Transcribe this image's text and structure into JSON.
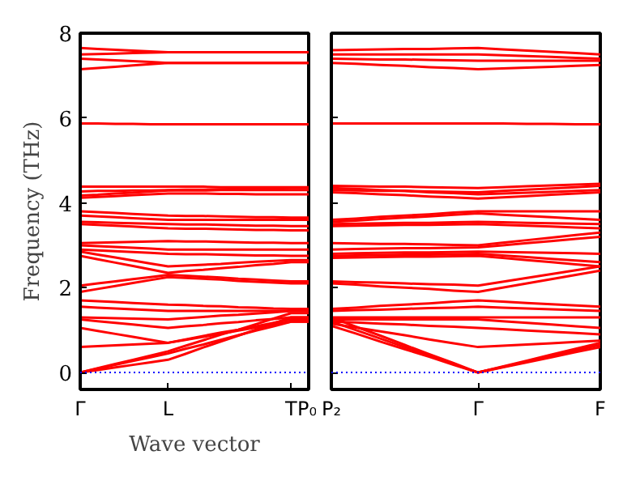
{
  "chart_data": [
    {
      "type": "line",
      "ylabel": "Frequency (THz)",
      "xlabel": "Wave vector",
      "ylim": [
        -0.4,
        8
      ],
      "categories": [
        "Γ",
        null,
        null,
        null,
        null,
        "L",
        null,
        null,
        null,
        null,
        null,
        null,
        "T",
        "P₀"
      ],
      "yticks": [
        0,
        2,
        4,
        6,
        8
      ],
      "ref_lines": [
        {
          "axis": "y",
          "value": 0,
          "label": null,
          "color": "#0000ff",
          "line_style": "dotted"
        }
      ],
      "series": [
        {
          "color": "#ff0000",
          "values": [
            7.65,
            7.63,
            7.61,
            7.59,
            7.57,
            7.55,
            7.55,
            7.55,
            7.55,
            7.55,
            7.55,
            7.55,
            7.55,
            7.55
          ]
        },
        {
          "color": "#ff0000",
          "values": [
            7.5,
            7.51,
            7.52,
            7.53,
            7.54,
            7.55,
            7.55,
            7.55,
            7.55,
            7.55,
            7.55,
            7.55,
            7.55,
            7.55
          ]
        },
        {
          "color": "#ff0000",
          "values": [
            7.4,
            7.38,
            7.36,
            7.34,
            7.32,
            7.3,
            7.3,
            7.3,
            7.3,
            7.3,
            7.3,
            7.3,
            7.3,
            7.3
          ]
        },
        {
          "color": "#ff0000",
          "values": [
            7.15,
            7.18,
            7.21,
            7.24,
            7.27,
            7.3,
            7.3,
            7.3,
            7.3,
            7.3,
            7.3,
            7.3,
            7.3,
            7.3
          ]
        },
        {
          "color": "#ff0000",
          "values": [
            5.87,
            5.87,
            5.86,
            5.86,
            5.85,
            5.85,
            5.85,
            5.85,
            5.85,
            5.85,
            5.85,
            5.85,
            5.85,
            5.85
          ]
        },
        {
          "color": "#ff0000",
          "values": [
            4.38,
            4.38,
            4.38,
            4.38,
            4.38,
            4.38,
            4.38,
            4.38,
            4.37,
            4.37,
            4.37,
            4.37,
            4.37,
            4.37
          ]
        },
        {
          "color": "#ff0000",
          "values": [
            4.27,
            4.28,
            4.28,
            4.29,
            4.29,
            4.3,
            4.31,
            4.31,
            4.32,
            4.33,
            4.34,
            4.34,
            4.35,
            4.35
          ]
        },
        {
          "color": "#ff0000",
          "values": [
            4.17,
            4.19,
            4.22,
            4.24,
            4.27,
            4.29,
            4.29,
            4.29,
            4.3,
            4.3,
            4.3,
            4.3,
            4.3,
            4.3
          ]
        },
        {
          "color": "#ff0000",
          "values": [
            4.12,
            4.14,
            4.16,
            4.18,
            4.2,
            4.22,
            4.22,
            4.22,
            4.21,
            4.21,
            4.2,
            4.2,
            4.2,
            4.2
          ]
        },
        {
          "color": "#ff0000",
          "values": [
            3.8,
            3.78,
            3.76,
            3.74,
            3.72,
            3.7,
            3.69,
            3.69,
            3.68,
            3.67,
            3.66,
            3.66,
            3.65,
            3.65
          ]
        },
        {
          "color": "#ff0000",
          "values": [
            3.7,
            3.68,
            3.66,
            3.64,
            3.62,
            3.6,
            3.6,
            3.6,
            3.6,
            3.6,
            3.6,
            3.6,
            3.6,
            3.6
          ]
        },
        {
          "color": "#ff0000",
          "values": [
            3.55,
            3.54,
            3.53,
            3.52,
            3.51,
            3.5,
            3.49,
            3.49,
            3.48,
            3.47,
            3.46,
            3.46,
            3.45,
            3.45
          ]
        },
        {
          "color": "#ff0000",
          "values": [
            3.5,
            3.48,
            3.46,
            3.44,
            3.42,
            3.4,
            3.39,
            3.39,
            3.38,
            3.37,
            3.36,
            3.36,
            3.35,
            3.35
          ]
        },
        {
          "color": "#ff0000",
          "values": [
            3.05,
            3.06,
            3.07,
            3.08,
            3.09,
            3.1,
            3.09,
            3.09,
            3.08,
            3.07,
            3.06,
            3.06,
            3.05,
            3.05
          ]
        },
        {
          "color": "#ff0000",
          "values": [
            3.0,
            2.98,
            2.96,
            2.94,
            2.92,
            2.9,
            2.9,
            2.9,
            2.9,
            2.9,
            2.9,
            2.9,
            2.9,
            2.9
          ]
        },
        {
          "color": "#ff0000",
          "values": [
            2.9,
            2.88,
            2.86,
            2.84,
            2.82,
            2.8,
            2.79,
            2.79,
            2.78,
            2.77,
            2.76,
            2.76,
            2.75,
            2.75
          ]
        },
        {
          "color": "#ff0000",
          "values": [
            2.85,
            2.78,
            2.71,
            2.64,
            2.57,
            2.5,
            2.52,
            2.54,
            2.56,
            2.59,
            2.61,
            2.63,
            2.65,
            2.65
          ]
        },
        {
          "color": "#ff0000",
          "values": [
            2.75,
            2.67,
            2.59,
            2.51,
            2.43,
            2.35,
            2.39,
            2.42,
            2.46,
            2.49,
            2.53,
            2.56,
            2.6,
            2.6
          ]
        },
        {
          "color": "#ff0000",
          "values": [
            2.05,
            2.1,
            2.15,
            2.2,
            2.25,
            2.3,
            2.28,
            2.26,
            2.24,
            2.21,
            2.19,
            2.17,
            2.15,
            2.15
          ]
        },
        {
          "color": "#ff0000",
          "values": [
            1.9,
            1.97,
            2.04,
            2.11,
            2.18,
            2.25,
            2.23,
            2.21,
            2.19,
            2.16,
            2.14,
            2.12,
            2.1,
            2.1
          ]
        },
        {
          "color": "#ff0000",
          "values": [
            1.7,
            1.68,
            1.66,
            1.64,
            1.62,
            1.6,
            1.59,
            1.57,
            1.56,
            1.54,
            1.53,
            1.51,
            1.5,
            1.5
          ]
        },
        {
          "color": "#ff0000",
          "values": [
            1.55,
            1.53,
            1.51,
            1.49,
            1.47,
            1.45,
            1.45,
            1.45,
            1.45,
            1.45,
            1.45,
            1.45,
            1.45,
            1.45
          ]
        },
        {
          "color": "#ff0000",
          "values": [
            1.3,
            1.29,
            1.28,
            1.27,
            1.26,
            1.25,
            1.28,
            1.31,
            1.34,
            1.36,
            1.39,
            1.42,
            1.45,
            1.45
          ]
        },
        {
          "color": "#ff0000",
          "values": [
            1.25,
            1.21,
            1.17,
            1.13,
            1.09,
            1.05,
            1.09,
            1.12,
            1.16,
            1.19,
            1.23,
            1.26,
            1.3,
            1.3
          ]
        },
        {
          "color": "#ff0000",
          "values": [
            1.05,
            0.98,
            0.91,
            0.84,
            0.77,
            0.7,
            0.78,
            0.86,
            0.94,
            1.01,
            1.09,
            1.17,
            1.25,
            1.25
          ]
        },
        {
          "color": "#ff0000",
          "values": [
            0.6,
            0.62,
            0.64,
            0.66,
            0.68,
            0.7,
            0.77,
            0.84,
            0.91,
            0.99,
            1.06,
            1.13,
            1.2,
            1.2
          ]
        },
        {
          "color": "#ff0000",
          "values": [
            0,
            0.1,
            0.2,
            0.3,
            0.4,
            0.5,
            0.63,
            0.76,
            0.89,
            1.01,
            1.14,
            1.27,
            1.4,
            1.4
          ]
        },
        {
          "color": "#ff0000",
          "values": [
            0,
            0.09,
            0.18,
            0.27,
            0.36,
            0.45,
            0.56,
            0.66,
            0.77,
            0.88,
            0.99,
            1.09,
            1.2,
            1.2
          ]
        },
        {
          "color": "#ff0000",
          "values": [
            0,
            0.06,
            0.12,
            0.18,
            0.24,
            0.3,
            0.44,
            0.59,
            0.73,
            0.87,
            1.01,
            1.16,
            1.3,
            1.3
          ]
        }
      ]
    },
    {
      "type": "line",
      "ylim": [
        -0.4,
        8
      ],
      "tick_labels": "x",
      "categories": [
        "P₂",
        null,
        null,
        null,
        null,
        null,
        "Γ",
        null,
        null,
        null,
        null,
        "F"
      ],
      "yticks": [
        0,
        2,
        4,
        6,
        8
      ],
      "ref_lines": [
        {
          "axis": "y",
          "value": 0,
          "label": null,
          "color": "#0000ff",
          "line_style": "dotted"
        }
      ],
      "series": [
        {
          "color": "#ff0000",
          "values": [
            7.6,
            7.61,
            7.62,
            7.63,
            7.63,
            7.64,
            7.65,
            7.62,
            7.59,
            7.56,
            7.53,
            7.5
          ]
        },
        {
          "color": "#ff0000",
          "values": [
            7.5,
            7.5,
            7.5,
            7.5,
            7.5,
            7.5,
            7.5,
            7.48,
            7.46,
            7.44,
            7.42,
            7.4
          ]
        },
        {
          "color": "#ff0000",
          "values": [
            7.4,
            7.39,
            7.38,
            7.38,
            7.37,
            7.36,
            7.35,
            7.35,
            7.35,
            7.35,
            7.35,
            7.35
          ]
        },
        {
          "color": "#ff0000",
          "values": [
            7.3,
            7.28,
            7.25,
            7.23,
            7.2,
            7.18,
            7.15,
            7.17,
            7.19,
            7.21,
            7.23,
            7.25
          ]
        },
        {
          "color": "#ff0000",
          "values": [
            5.87,
            5.87,
            5.87,
            5.87,
            5.87,
            5.87,
            5.87,
            5.87,
            5.86,
            5.86,
            5.85,
            5.85
          ]
        },
        {
          "color": "#ff0000",
          "values": [
            4.4,
            4.39,
            4.38,
            4.38,
            4.37,
            4.36,
            4.35,
            4.37,
            4.39,
            4.41,
            4.43,
            4.45
          ]
        },
        {
          "color": "#ff0000",
          "values": [
            4.3,
            4.29,
            4.28,
            4.28,
            4.27,
            4.26,
            4.25,
            4.28,
            4.31,
            4.34,
            4.37,
            4.4
          ]
        },
        {
          "color": "#ff0000",
          "values": [
            4.35,
            4.33,
            4.3,
            4.28,
            4.25,
            4.23,
            4.2,
            4.22,
            4.24,
            4.26,
            4.28,
            4.3
          ]
        },
        {
          "color": "#ff0000",
          "values": [
            4.25,
            4.23,
            4.2,
            4.18,
            4.15,
            4.13,
            4.1,
            4.13,
            4.16,
            4.19,
            4.22,
            4.25
          ]
        },
        {
          "color": "#ff0000",
          "values": [
            3.6,
            3.63,
            3.67,
            3.7,
            3.73,
            3.77,
            3.8,
            3.8,
            3.8,
            3.8,
            3.8,
            3.8
          ]
        },
        {
          "color": "#ff0000",
          "values": [
            3.55,
            3.58,
            3.62,
            3.65,
            3.68,
            3.72,
            3.75,
            3.72,
            3.69,
            3.66,
            3.63,
            3.6
          ]
        },
        {
          "color": "#ff0000",
          "values": [
            3.5,
            3.51,
            3.52,
            3.53,
            3.53,
            3.54,
            3.55,
            3.54,
            3.53,
            3.52,
            3.51,
            3.5
          ]
        },
        {
          "color": "#ff0000",
          "values": [
            3.45,
            3.46,
            3.47,
            3.48,
            3.48,
            3.49,
            3.5,
            3.48,
            3.46,
            3.44,
            3.42,
            3.4
          ]
        },
        {
          "color": "#ff0000",
          "values": [
            3.05,
            3.04,
            3.03,
            3.03,
            3.02,
            3.01,
            3.0,
            3.06,
            3.12,
            3.18,
            3.24,
            3.3
          ]
        },
        {
          "color": "#ff0000",
          "values": [
            2.9,
            2.91,
            2.92,
            2.93,
            2.93,
            2.94,
            2.95,
            3.0,
            3.05,
            3.1,
            3.15,
            3.2
          ]
        },
        {
          "color": "#ff0000",
          "values": [
            2.8,
            2.81,
            2.82,
            2.83,
            2.83,
            2.84,
            2.85,
            2.84,
            2.83,
            2.82,
            2.81,
            2.8
          ]
        },
        {
          "color": "#ff0000",
          "values": [
            2.75,
            2.76,
            2.77,
            2.78,
            2.78,
            2.79,
            2.8,
            2.76,
            2.72,
            2.68,
            2.64,
            2.6
          ]
        },
        {
          "color": "#ff0000",
          "values": [
            2.7,
            2.71,
            2.72,
            2.73,
            2.73,
            2.74,
            2.75,
            2.7,
            2.65,
            2.6,
            2.55,
            2.5
          ]
        },
        {
          "color": "#ff0000",
          "values": [
            2.15,
            2.13,
            2.12,
            2.1,
            2.08,
            2.07,
            2.05,
            2.14,
            2.23,
            2.32,
            2.41,
            2.5
          ]
        },
        {
          "color": "#ff0000",
          "values": [
            2.1,
            2.07,
            2.03,
            2.0,
            1.97,
            1.93,
            1.9,
            2.0,
            2.1,
            2.2,
            2.3,
            2.4
          ]
        },
        {
          "color": "#ff0000",
          "values": [
            1.5,
            1.53,
            1.57,
            1.6,
            1.63,
            1.67,
            1.7,
            1.67,
            1.64,
            1.61,
            1.58,
            1.55
          ]
        },
        {
          "color": "#ff0000",
          "values": [
            1.45,
            1.47,
            1.48,
            1.5,
            1.52,
            1.53,
            1.55,
            1.53,
            1.51,
            1.49,
            1.47,
            1.45
          ]
        },
        {
          "color": "#ff0000",
          "values": [
            1.3,
            1.3,
            1.3,
            1.3,
            1.3,
            1.3,
            1.3,
            1.3,
            1.3,
            1.3,
            1.3,
            1.3
          ]
        },
        {
          "color": "#ff0000",
          "values": [
            1.25,
            1.25,
            1.25,
            1.25,
            1.25,
            1.25,
            1.25,
            1.21,
            1.17,
            1.13,
            1.09,
            1.05
          ]
        },
        {
          "color": "#ff0000",
          "values": [
            1.2,
            1.18,
            1.15,
            1.13,
            1.1,
            1.08,
            1.05,
            1.02,
            0.99,
            0.96,
            0.93,
            0.9
          ]
        },
        {
          "color": "#ff0000",
          "values": [
            1.15,
            1.06,
            0.97,
            0.88,
            0.78,
            0.69,
            0.6,
            0.63,
            0.66,
            0.69,
            0.72,
            0.75
          ]
        },
        {
          "color": "#ff0000",
          "values": [
            1.2,
            1.0,
            0.8,
            0.6,
            0.4,
            0.2,
            0,
            0.13,
            0.26,
            0.39,
            0.52,
            0.65
          ]
        },
        {
          "color": "#ff0000",
          "values": [
            1.1,
            0.92,
            0.73,
            0.55,
            0.37,
            0.18,
            0,
            0.12,
            0.24,
            0.36,
            0.48,
            0.6
          ]
        },
        {
          "color": "#ff0000",
          "values": [
            1.3,
            1.08,
            0.87,
            0.65,
            0.43,
            0.22,
            0,
            0.14,
            0.28,
            0.42,
            0.56,
            0.7
          ]
        }
      ]
    }
  ]
}
